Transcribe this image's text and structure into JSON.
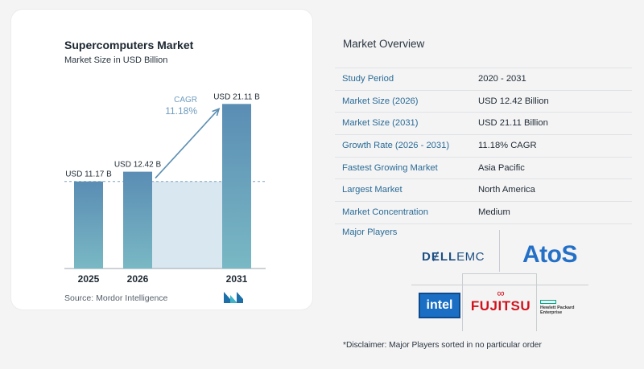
{
  "chart_data": {
    "type": "bar",
    "title": "Supercomputers Market",
    "subtitle": "Market Size in USD Billion",
    "categories": [
      "2025",
      "2026",
      "2031"
    ],
    "values": [
      11.17,
      12.42,
      21.11
    ],
    "data_labels": [
      "USD 11.17 B",
      "USD 12.42 B",
      "USD 21.11 B"
    ],
    "cagr_label": "CAGR",
    "cagr_value": "11.18%",
    "ylim": [
      0,
      23
    ],
    "source": "Source:  Mordor Intelligence",
    "colors": {
      "bar_top": "#5b8db4",
      "bar_bottom": "#79b8c4",
      "band": "#d9e7f1",
      "arrow": "#5c8eb1",
      "cagr": "#6f9bbd"
    }
  },
  "overview": {
    "title": "Market Overview",
    "rows": [
      {
        "label": "Study Period",
        "value": "2020 - 2031"
      },
      {
        "label": "Market Size (2026)",
        "value": "USD 12.42 Billion"
      },
      {
        "label": "Market Size (2031)",
        "value": "USD 21.11 Billion"
      },
      {
        "label": "Growth Rate (2026 - 2031)",
        "value": "11.18% CAGR"
      },
      {
        "label": "Fastest Growing Market",
        "value": "Asia Pacific"
      },
      {
        "label": "Largest Market",
        "value": "North America"
      },
      {
        "label": "Market Concentration",
        "value": "Medium"
      }
    ],
    "players_title": "Major Players",
    "logos": {
      "dell_a": "DɆLL",
      "dell_b": "EMC",
      "atos": "AtoS",
      "intel": "intel",
      "fujitsu_mark": "∞",
      "fujitsu": "FUJITSU",
      "hpe_line1": "Hewlett Packard",
      "hpe_line2": "Enterprise"
    },
    "disclaimer": "*Disclaimer: Major Players sorted in no particular order"
  }
}
